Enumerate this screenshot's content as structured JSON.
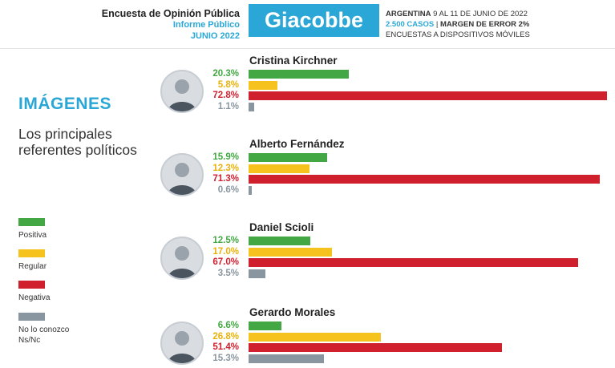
{
  "header": {
    "left_title": "Encuesta de Opinión Pública",
    "left_sub1": "Informe Público",
    "left_sub2": "JUNIO 2022",
    "brand": "Giacobbe",
    "right_line1_bold": "ARGENTINA",
    "right_line1_rest": " 9 AL 11 DE JUNIO DE 2022",
    "right_line2_cases": "2.500 CASOS",
    "right_line2_sep": " | ",
    "right_line2_margin": "MARGEN DE ERROR 2%",
    "right_line3": "ENCUESTAS A DISPOSITIVOS MÓVILES"
  },
  "section": {
    "title": "IMÁGENES",
    "subtitle": "Los principales referentes políticos"
  },
  "legend": [
    {
      "label": "Positiva",
      "color": "#43a843"
    },
    {
      "label": "Regular",
      "color": "#f6c21d"
    },
    {
      "label": "Negativa",
      "color": "#d0202e"
    },
    {
      "label": "No lo conozco\nNs/Nc",
      "color": "#8a969f"
    }
  ],
  "chart_data": {
    "type": "bar",
    "orientation": "horizontal",
    "categories": [
      "Positiva",
      "Regular",
      "Negativa",
      "No lo conozco Ns/Nc"
    ],
    "colors": [
      "#43a843",
      "#f6c21d",
      "#d0202e",
      "#8a969f"
    ],
    "xlim": [
      0,
      72.8
    ],
    "groups": [
      {
        "name": "Cristina Kirchner",
        "values": [
          20.3,
          5.8,
          72.8,
          1.1
        ],
        "labels": [
          "20.3%",
          "5.8%",
          "72.8%",
          "1.1%"
        ]
      },
      {
        "name": "Alberto Fernández",
        "values": [
          15.9,
          12.3,
          71.3,
          0.6
        ],
        "labels": [
          "15.9%",
          "12.3%",
          "71.3%",
          "0.6%"
        ]
      },
      {
        "name": "Daniel Scioli",
        "values": [
          12.5,
          17.0,
          67.0,
          3.5
        ],
        "labels": [
          "12.5%",
          "17.0%",
          "67.0%",
          "3.5%"
        ]
      },
      {
        "name": "Gerardo Morales",
        "values": [
          6.6,
          26.8,
          51.4,
          15.3
        ],
        "labels": [
          "6.6%",
          "26.8%",
          "51.4%",
          "15.3%"
        ]
      }
    ]
  }
}
